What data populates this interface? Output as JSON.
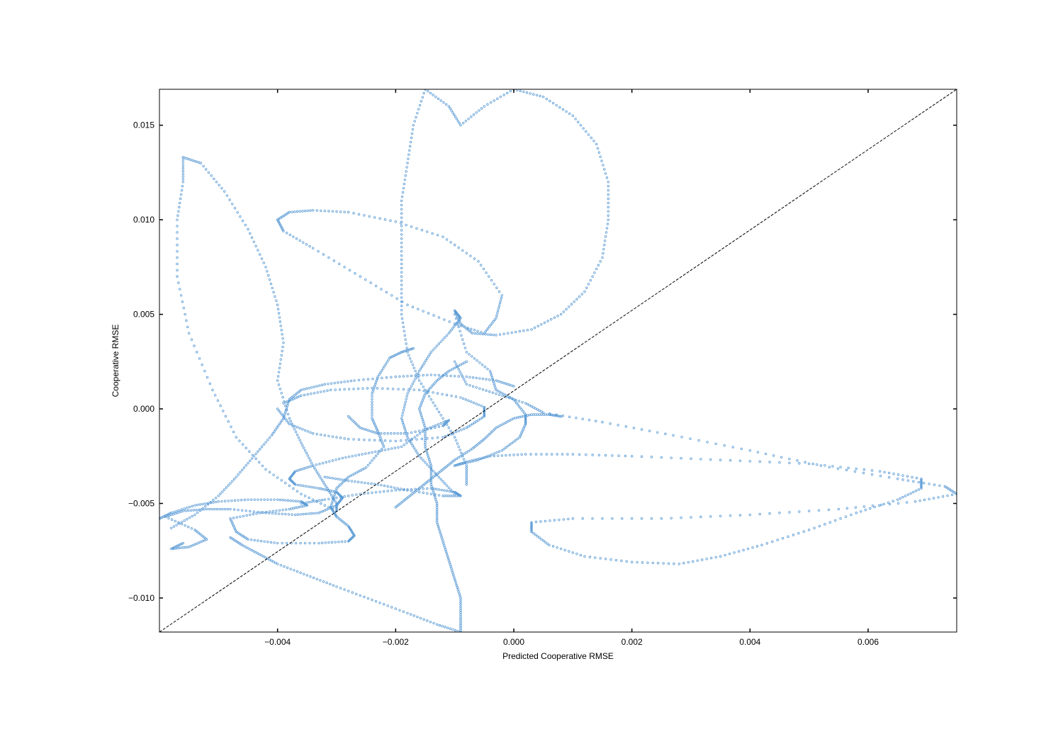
{
  "chart_data": {
    "type": "scatter",
    "xlabel": "Predicted Cooperative RMSE",
    "ylabel": "Cooperative RMSE",
    "xlim": [
      -0.006,
      0.0075
    ],
    "ylim": [
      -0.0118,
      0.0169
    ],
    "xticks": [
      -0.004,
      -0.002,
      0.0,
      0.002,
      0.004,
      0.006
    ],
    "xtick_labels": [
      "−0.004",
      "−0.002",
      "0.000",
      "0.002",
      "0.004",
      "0.006"
    ],
    "yticks": [
      -0.01,
      -0.005,
      0.0,
      0.005,
      0.01,
      0.015
    ],
    "ytick_labels": [
      "−0.010",
      "−0.005",
      "0.000",
      "0.005",
      "0.010",
      "0.015"
    ],
    "grid": false,
    "reference_line": {
      "style": "dashed",
      "color": "#000000",
      "from": [
        -0.006,
        -0.0118
      ],
      "to": [
        0.0075,
        0.0169
      ]
    },
    "marker_color": "#5b9bd5",
    "series": [
      {
        "points": [
          [
            -0.006,
            -0.0058
          ],
          [
            -0.0058,
            -0.0055
          ],
          [
            -0.0054,
            -0.0051
          ],
          [
            -0.005,
            -0.0049
          ],
          [
            -0.0045,
            -0.0048
          ],
          [
            -0.004,
            -0.0048
          ],
          [
            -0.0036,
            -0.0049
          ],
          [
            -0.0035,
            -0.0051
          ],
          [
            -0.0038,
            -0.0053
          ],
          [
            -0.0043,
            -0.0055
          ],
          [
            -0.0048,
            -0.0058
          ],
          [
            -0.0047,
            -0.0065
          ],
          [
            -0.0045,
            -0.0069
          ],
          [
            -0.004,
            -0.0071
          ],
          [
            -0.0033,
            -0.0071
          ],
          [
            -0.0028,
            -0.007
          ],
          [
            -0.0027,
            -0.0067
          ],
          [
            -0.0028,
            -0.0062
          ],
          [
            -0.003,
            -0.0057
          ],
          [
            -0.0031,
            -0.0052
          ],
          [
            -0.003,
            -0.0042
          ],
          [
            -0.0028,
            -0.0036
          ],
          [
            -0.0025,
            -0.0031
          ],
          [
            -0.0022,
            -0.002
          ],
          [
            -0.0023,
            -0.0012
          ],
          [
            -0.0024,
            -0.0005
          ],
          [
            -0.0024,
            0.0008
          ],
          [
            -0.0023,
            0.0017
          ],
          [
            -0.0021,
            0.0027
          ],
          [
            -0.0019,
            0.003
          ],
          [
            -0.0017,
            0.0032
          ]
        ]
      },
      {
        "points": [
          [
            -0.0056,
            -0.0071
          ],
          [
            -0.0058,
            -0.0074
          ],
          [
            -0.0055,
            -0.0073
          ],
          [
            -0.0052,
            -0.0069
          ],
          [
            -0.0054,
            -0.0064
          ],
          [
            -0.0059,
            -0.0057
          ],
          [
            -0.0056,
            -0.0054
          ],
          [
            -0.0052,
            -0.0053
          ],
          [
            -0.0048,
            -0.0053
          ],
          [
            -0.0042,
            -0.0055
          ],
          [
            -0.0037,
            -0.0056
          ],
          [
            -0.0033,
            -0.0055
          ],
          [
            -0.003,
            -0.0051
          ],
          [
            -0.0029,
            -0.0047
          ],
          [
            -0.003,
            -0.0044
          ],
          [
            -0.0033,
            -0.0042
          ],
          [
            -0.0037,
            -0.004
          ],
          [
            -0.0038,
            -0.0037
          ],
          [
            -0.0037,
            -0.0033
          ],
          [
            -0.0034,
            -0.003
          ],
          [
            -0.0029,
            -0.0026
          ],
          [
            -0.0024,
            -0.0023
          ],
          [
            -0.0019,
            -0.002
          ],
          [
            -0.0015,
            -0.0011
          ],
          [
            -0.0011,
            -0.0006
          ],
          [
            -0.0012,
            -0.0009
          ],
          [
            -0.0018,
            -0.0013
          ],
          [
            -0.0023,
            -0.0013
          ],
          [
            -0.0026,
            -0.001
          ],
          [
            -0.0028,
            -0.0004
          ]
        ]
      },
      {
        "points": [
          [
            -0.0056,
            0.0133
          ],
          [
            -0.0053,
            0.013
          ],
          [
            -0.0049,
            0.0115
          ],
          [
            -0.0045,
            0.0095
          ],
          [
            -0.0042,
            0.0075
          ],
          [
            -0.004,
            0.0055
          ],
          [
            -0.0039,
            0.0035
          ],
          [
            -0.004,
            0.0015
          ],
          [
            -0.0038,
            -0.0005
          ],
          [
            -0.0036,
            -0.0018
          ],
          [
            -0.0034,
            -0.003
          ],
          [
            -0.0032,
            -0.004
          ],
          [
            -0.003,
            -0.005
          ],
          [
            -0.003,
            -0.0054
          ],
          [
            -0.0036,
            -0.0045
          ],
          [
            -0.0042,
            -0.0032
          ],
          [
            -0.0047,
            -0.0015
          ],
          [
            -0.0051,
            0.001
          ],
          [
            -0.0055,
            0.004
          ],
          [
            -0.0057,
            0.007
          ],
          [
            -0.0057,
            0.01
          ],
          [
            -0.0056,
            0.012
          ],
          [
            -0.0056,
            0.0133
          ]
        ]
      },
      {
        "points": [
          [
            -0.0015,
            0.0169
          ],
          [
            -0.0011,
            0.016
          ],
          [
            -0.0009,
            0.015
          ],
          [
            -0.0005,
            0.016
          ],
          [
            0.0,
            0.0169
          ],
          [
            0.0005,
            0.0165
          ],
          [
            0.001,
            0.0155
          ],
          [
            0.0014,
            0.014
          ],
          [
            0.0016,
            0.012
          ],
          [
            0.0016,
            0.01
          ],
          [
            0.0015,
            0.008
          ],
          [
            0.0012,
            0.0062
          ],
          [
            0.0008,
            0.005
          ],
          [
            0.0003,
            0.0042
          ],
          [
            -0.0003,
            0.0039
          ],
          [
            -0.0007,
            0.004
          ],
          [
            -0.0009,
            0.0045
          ],
          [
            -0.001,
            0.0052
          ],
          [
            -0.0009,
            0.0048
          ],
          [
            -0.0011,
            0.004
          ],
          [
            -0.0014,
            0.003
          ],
          [
            -0.0016,
            0.002
          ],
          [
            -0.0018,
            0.0008
          ],
          [
            -0.0019,
            -0.0005
          ],
          [
            -0.0018,
            -0.0015
          ],
          [
            -0.0016,
            -0.0025
          ],
          [
            -0.0013,
            -0.0035
          ],
          [
            -0.001,
            -0.0045
          ]
        ]
      },
      {
        "points": [
          [
            -0.0015,
            0.0169
          ],
          [
            -0.0017,
            0.015
          ],
          [
            -0.0018,
            0.013
          ],
          [
            -0.0019,
            0.011
          ],
          [
            -0.0019,
            0.009
          ],
          [
            -0.0019,
            0.007
          ],
          [
            -0.0019,
            0.005
          ],
          [
            -0.0018,
            0.003
          ],
          [
            -0.0016,
            0.0015
          ],
          [
            -0.0013,
            0.0
          ],
          [
            -0.001,
            -0.0015
          ],
          [
            -0.0008,
            -0.003
          ],
          [
            -0.0008,
            -0.004
          ]
        ]
      },
      {
        "points": [
          [
            -0.004,
            0.01
          ],
          [
            -0.0038,
            0.0104
          ],
          [
            -0.0034,
            0.0105
          ],
          [
            -0.0028,
            0.0104
          ],
          [
            -0.002,
            0.0099
          ],
          [
            -0.0012,
            0.0091
          ],
          [
            -0.0006,
            0.0078
          ],
          [
            -0.0002,
            0.006
          ],
          [
            -0.0003,
            0.0048
          ],
          [
            -0.0005,
            0.004
          ],
          [
            -0.001,
            0.0045
          ],
          [
            -0.0018,
            0.0055
          ],
          [
            -0.0026,
            0.007
          ],
          [
            -0.0034,
            0.0085
          ],
          [
            -0.0039,
            0.0094
          ],
          [
            -0.004,
            0.01
          ]
        ]
      },
      {
        "points": [
          [
            -0.001,
            -0.003
          ],
          [
            -0.0008,
            -0.0028
          ],
          [
            -0.0004,
            -0.0025
          ],
          [
            0.0002,
            -0.0024
          ],
          [
            0.001,
            -0.0024
          ],
          [
            0.002,
            -0.0025
          ],
          [
            0.0035,
            -0.0027
          ],
          [
            0.005,
            -0.0029
          ],
          [
            0.0062,
            -0.0033
          ],
          [
            0.0069,
            -0.0037
          ],
          [
            0.0069,
            -0.0042
          ],
          [
            0.0065,
            -0.0048
          ],
          [
            0.0058,
            -0.0055
          ],
          [
            0.005,
            -0.0064
          ],
          [
            0.0042,
            -0.0072
          ],
          [
            0.0035,
            -0.0078
          ],
          [
            0.0028,
            -0.0082
          ],
          [
            0.002,
            -0.0081
          ],
          [
            0.0012,
            -0.0078
          ],
          [
            0.0006,
            -0.0072
          ],
          [
            0.0003,
            -0.0065
          ],
          [
            0.0003,
            -0.006
          ],
          [
            0.001,
            -0.0058
          ],
          [
            0.0025,
            -0.0058
          ],
          [
            0.004,
            -0.0056
          ],
          [
            0.0055,
            -0.0053
          ],
          [
            0.0068,
            -0.0049
          ],
          [
            0.0075,
            -0.0045
          ],
          [
            0.0073,
            -0.0041
          ],
          [
            0.0065,
            -0.0037
          ],
          [
            0.0052,
            -0.003
          ],
          [
            0.004,
            -0.0022
          ],
          [
            0.0027,
            -0.0014
          ],
          [
            0.0015,
            -0.0007
          ],
          [
            0.0005,
            -0.0002
          ],
          [
            0.0002,
            0.0003
          ],
          [
            -0.0003,
            0.0008
          ],
          [
            -0.0008,
            0.0013
          ],
          [
            -0.001,
            0.0025
          ]
        ]
      },
      {
        "points": [
          [
            -0.001,
            -0.003
          ],
          [
            -0.0006,
            -0.0027
          ],
          [
            -0.0002,
            -0.0022
          ],
          [
            0.0001,
            -0.0015
          ],
          [
            0.0002,
            -0.0008
          ],
          [
            0.0002,
            -0.0003
          ],
          [
            0.0,
            0.0005
          ],
          [
            -0.0003,
            0.001
          ],
          [
            -0.0004,
            0.002
          ],
          [
            -0.0008,
            0.003
          ],
          [
            -0.001,
            0.005
          ]
        ]
      },
      {
        "points": [
          [
            0.0008,
            -0.0004
          ],
          [
            0.0006,
            -0.0003
          ],
          [
            0.0003,
            -0.0003
          ],
          [
            0.0,
            -0.0005
          ],
          [
            -0.0003,
            -0.001
          ],
          [
            -0.0005,
            -0.0016
          ],
          [
            -0.0007,
            -0.0021
          ],
          [
            -0.001,
            -0.0027
          ],
          [
            -0.0012,
            -0.0032
          ],
          [
            -0.0014,
            -0.0037
          ],
          [
            -0.0016,
            -0.0042
          ],
          [
            -0.0018,
            -0.0047
          ],
          [
            -0.002,
            -0.0052
          ]
        ]
      },
      {
        "points": [
          [
            -0.0048,
            -0.0068
          ],
          [
            -0.0046,
            -0.0072
          ],
          [
            -0.0043,
            -0.0077
          ],
          [
            -0.004,
            -0.0082
          ],
          [
            -0.0035,
            -0.0088
          ],
          [
            -0.003,
            -0.0094
          ],
          [
            -0.0024,
            -0.0101
          ],
          [
            -0.0018,
            -0.0108
          ],
          [
            -0.0013,
            -0.0114
          ],
          [
            -0.0009,
            -0.0118
          ],
          [
            -0.0009,
            -0.011
          ],
          [
            -0.0009,
            -0.01
          ],
          [
            -0.001,
            -0.009
          ],
          [
            -0.0011,
            -0.008
          ],
          [
            -0.0012,
            -0.007
          ],
          [
            -0.0013,
            -0.006
          ],
          [
            -0.0013,
            -0.005
          ],
          [
            -0.0014,
            -0.004
          ],
          [
            -0.0014,
            -0.003
          ],
          [
            -0.0015,
            -0.002
          ],
          [
            -0.0015,
            -0.001
          ],
          [
            -0.0016,
            0.0
          ],
          [
            -0.0015,
            0.0008
          ],
          [
            -0.0013,
            0.0015
          ],
          [
            -0.0011,
            0.002
          ],
          [
            -0.0008,
            0.0025
          ]
        ]
      },
      {
        "points": [
          [
            -0.0058,
            -0.0063
          ],
          [
            -0.0054,
            -0.0056
          ],
          [
            -0.005,
            -0.0046
          ],
          [
            -0.0047,
            -0.0036
          ],
          [
            -0.0044,
            -0.0025
          ],
          [
            -0.0041,
            -0.0014
          ],
          [
            -0.0039,
            -0.0005
          ],
          [
            -0.0038,
            0.0005
          ],
          [
            -0.0036,
            0.001
          ],
          [
            -0.0032,
            0.0013
          ],
          [
            -0.0027,
            0.0015
          ],
          [
            -0.002,
            0.0017
          ],
          [
            -0.0014,
            0.0018
          ],
          [
            -0.0008,
            0.0017
          ],
          [
            -0.0003,
            0.0015
          ],
          [
            0.0,
            0.0012
          ]
        ]
      },
      {
        "points": [
          [
            -0.004,
            0.0
          ],
          [
            -0.0038,
            -0.0008
          ],
          [
            -0.0034,
            -0.0013
          ],
          [
            -0.0028,
            -0.0016
          ],
          [
            -0.002,
            -0.0017
          ],
          [
            -0.0012,
            -0.0015
          ],
          [
            -0.0008,
            -0.001
          ],
          [
            -0.0005,
            -0.0004
          ],
          [
            -0.0005,
            0.0001
          ],
          [
            -0.0009,
            0.0006
          ],
          [
            -0.0016,
            0.001
          ],
          [
            -0.0024,
            0.0011
          ],
          [
            -0.0031,
            0.001
          ],
          [
            -0.0036,
            0.0007
          ],
          [
            -0.0039,
            0.0003
          ]
        ]
      },
      {
        "points": [
          [
            -0.0036,
            -0.005
          ],
          [
            -0.0032,
            -0.0048
          ],
          [
            -0.0026,
            -0.0045
          ],
          [
            -0.002,
            -0.0043
          ],
          [
            -0.0014,
            -0.0042
          ],
          [
            -0.001,
            -0.0044
          ],
          [
            -0.0009,
            -0.0046
          ],
          [
            -0.0012,
            -0.0046
          ],
          [
            -0.0018,
            -0.0043
          ],
          [
            -0.0023,
            -0.004
          ],
          [
            -0.0028,
            -0.0038
          ],
          [
            -0.0032,
            -0.0036
          ]
        ]
      }
    ]
  }
}
